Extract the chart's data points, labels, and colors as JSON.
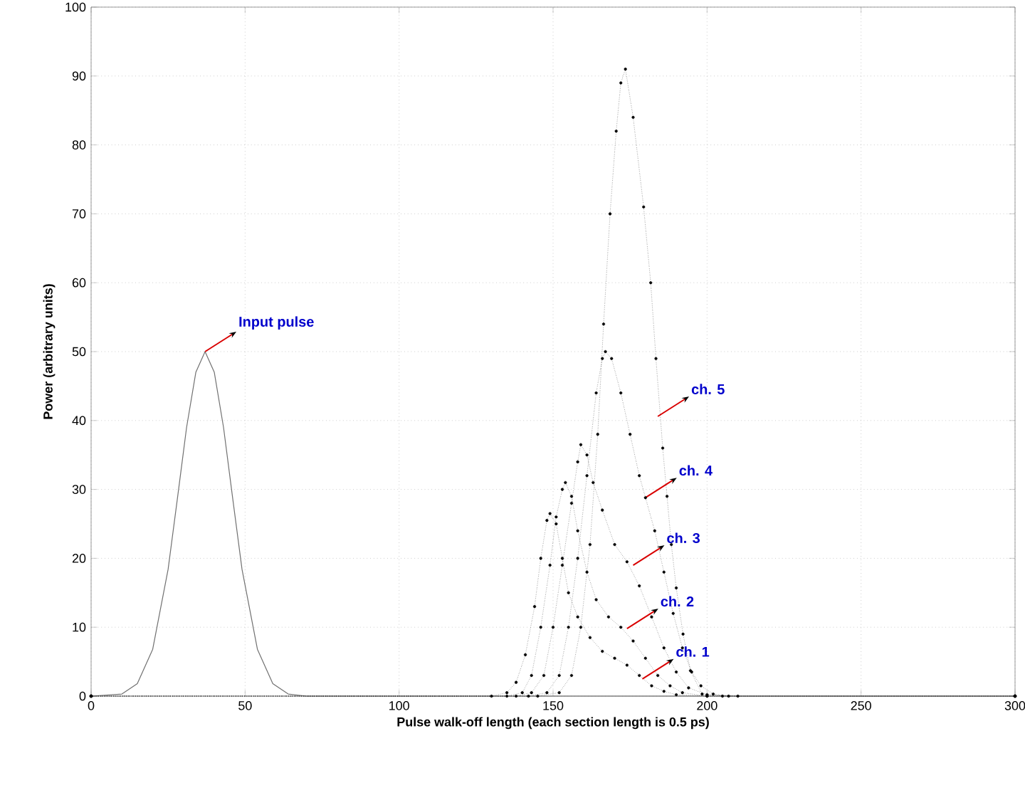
{
  "chart_data": {
    "type": "line",
    "xlabel": "Pulse walk-off length (each section length is 0.5 ps)",
    "ylabel": "Power (arbitrary units)",
    "xlim": [
      0,
      300
    ],
    "xticks": [
      0,
      50,
      100,
      150,
      200,
      250,
      300
    ],
    "ylim": [
      0,
      100
    ],
    "yticks": [
      0,
      10,
      20,
      30,
      40,
      50,
      60,
      70,
      80,
      90,
      100
    ],
    "grid": true,
    "series": [
      {
        "color": "#707070",
        "marker": "none",
        "x": [
          0,
          10,
          15,
          20,
          25,
          28,
          31,
          34,
          37,
          40,
          43,
          46,
          49,
          54,
          59,
          64,
          70,
          300
        ],
        "values": [
          0,
          0.3,
          1.8,
          6.8,
          18.4,
          28.6,
          39,
          47,
          50,
          47,
          39,
          28.6,
          18.4,
          6.8,
          1.8,
          0.3,
          0,
          0
        ]
      },
      {
        "color": "#000000",
        "marker": "circle",
        "line_style": "dotted",
        "x": [
          0,
          130,
          135,
          138,
          141,
          144,
          146,
          148,
          149,
          151,
          153,
          155,
          158,
          162,
          166,
          170,
          174,
          178,
          182,
          186,
          190,
          200,
          300
        ],
        "values": [
          0,
          0,
          0.5,
          2,
          6,
          13,
          20,
          25.5,
          26.5,
          25,
          20,
          15,
          11.5,
          8.5,
          6.5,
          5.5,
          4.5,
          3,
          1.5,
          0.7,
          0.2,
          0,
          0
        ]
      },
      {
        "color": "#000000",
        "marker": "circle",
        "line_style": "dotted",
        "x": [
          0,
          135,
          140,
          143,
          146,
          149,
          151,
          153,
          154,
          156,
          158,
          161,
          164,
          168,
          172,
          176,
          180,
          184,
          188,
          192,
          200,
          300
        ],
        "values": [
          0,
          0,
          0.5,
          3,
          10,
          19,
          26,
          30,
          31,
          29,
          24,
          18,
          14,
          11.5,
          10,
          8,
          5.5,
          3,
          1.5,
          0.5,
          0,
          0
        ]
      },
      {
        "color": "#000000",
        "marker": "circle",
        "line_style": "dotted",
        "x": [
          0,
          138,
          143,
          147,
          150,
          153,
          156,
          158,
          159,
          161,
          163,
          166,
          170,
          174,
          178,
          182,
          186,
          190,
          194,
          200,
          205,
          300
        ],
        "values": [
          0,
          0,
          0.5,
          3,
          10,
          19,
          28,
          34,
          36.5,
          35,
          31,
          27,
          22,
          19.5,
          16,
          11.5,
          7,
          3.5,
          1.2,
          0.2,
          0,
          0
        ]
      },
      {
        "color": "#000000",
        "marker": "circle",
        "line_style": "dotted",
        "x": [
          0,
          142,
          148,
          152,
          155,
          158,
          161,
          164,
          166,
          167,
          169,
          172,
          175,
          178,
          180,
          183,
          186,
          189,
          192,
          195,
          198,
          202,
          207,
          300
        ],
        "values": [
          0,
          0,
          0.5,
          3,
          10,
          20,
          32,
          44,
          49,
          50,
          49,
          44,
          38,
          32,
          28.8,
          24,
          18,
          12,
          7,
          3.5,
          1.5,
          0.3,
          0,
          0
        ]
      },
      {
        "color": "#000000",
        "marker": "circle",
        "line_style": "dotted",
        "x": [
          0,
          145,
          152,
          156,
          159,
          162,
          164.5,
          166.4,
          168.5,
          170.5,
          172,
          173.5,
          176,
          179.4,
          181.7,
          183.4,
          185.6,
          187,
          188.4,
          190,
          192.2,
          194.6,
          198.4,
          210,
          300
        ],
        "values": [
          0,
          0,
          0.5,
          3,
          10,
          22,
          38,
          54,
          70,
          82,
          89,
          91,
          84,
          71,
          60,
          49,
          36,
          29,
          22,
          15.7,
          9,
          3.7,
          0.3,
          0,
          0
        ]
      }
    ],
    "annotations": [
      {
        "text": "Input pulse",
        "x": 37,
        "y": 50
      },
      {
        "text": "ch. 1",
        "x": 179,
        "y": 2.5
      },
      {
        "text": "ch. 2",
        "x": 174,
        "y": 9.8
      },
      {
        "text": "ch. 3",
        "x": 176,
        "y": 19
      },
      {
        "text": "ch. 4",
        "x": 180,
        "y": 28.8
      },
      {
        "text": "ch. 5",
        "x": 184,
        "y": 40.6
      }
    ]
  }
}
